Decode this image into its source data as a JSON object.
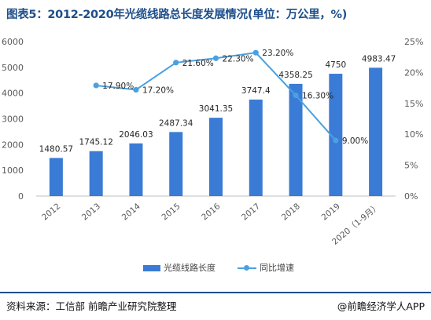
{
  "title": "图表5：2012-2020年光缆线路总长度发展情况(单位：万公里，%)",
  "footer": {
    "source": "资料来源：工信部 前瞻产业研究院整理",
    "brand": "@前瞻经济学人APP"
  },
  "colors": {
    "bar": "#3a7bd5",
    "line": "#4aa0e0",
    "title": "#1e4f8a"
  },
  "chart_data": {
    "type": "bar",
    "categories": [
      "2012",
      "2013",
      "2014",
      "2015",
      "2016",
      "2017",
      "2018",
      "2019",
      "2020（1-9月）"
    ],
    "series": [
      {
        "name": "光缆线路长度",
        "type": "bar",
        "axis": "left",
        "values": [
          1480.57,
          1745.12,
          2046.03,
          2487.34,
          3041.35,
          3747.4,
          4358.25,
          4750,
          4983.47
        ],
        "labels": [
          "1480.57",
          "1745.12",
          "2046.03",
          "2487.34",
          "3041.35",
          "3747.4",
          "4358.25",
          "4750",
          "4983.47"
        ]
      },
      {
        "name": "同比增速",
        "type": "line",
        "axis": "right",
        "values": [
          null,
          17.9,
          17.2,
          21.6,
          22.3,
          23.2,
          16.3,
          9.0,
          null
        ],
        "labels": [
          "",
          "17.90%",
          "17.20%",
          "21.60%",
          "22.30%",
          "23.20%",
          "16.30%",
          "9.00%",
          ""
        ]
      }
    ],
    "y_left": {
      "min": 0,
      "max": 6000,
      "ticks": [
        "0",
        "1000",
        "2000",
        "3000",
        "4000",
        "5000",
        "6000"
      ]
    },
    "y_right": {
      "min": 0,
      "max": 25,
      "ticks": [
        "0%",
        "5%",
        "10%",
        "15%",
        "20%",
        "25%"
      ]
    },
    "grid": false,
    "legend_position": "bottom"
  }
}
